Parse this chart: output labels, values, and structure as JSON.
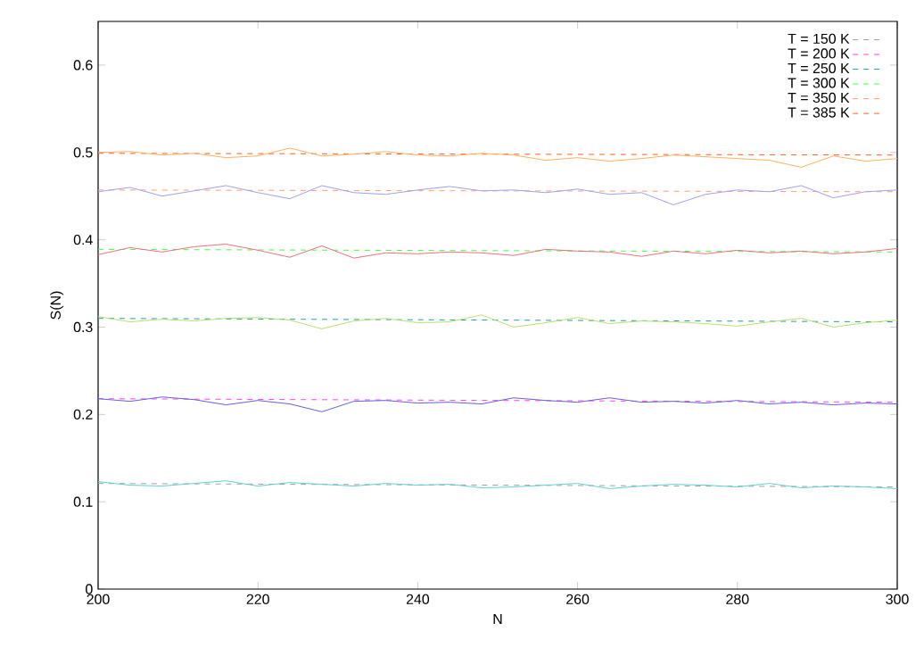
{
  "chart_data": {
    "type": "line",
    "xlabel": "N",
    "ylabel": "S(N)",
    "xlim": [
      200,
      300
    ],
    "ylim": [
      0,
      0.65
    ],
    "xticks": [
      200,
      220,
      240,
      260,
      280,
      300
    ],
    "yticks": [
      0,
      0.1,
      0.2,
      0.3,
      0.4,
      0.5,
      0.6
    ],
    "grid": false,
    "legend": "top right",
    "marker": "none",
    "series": [
      {
        "name": "T = 150 K",
        "color": "#a0a0a0",
        "line_style": "dashed",
        "x": [
          200,
          300
        ],
        "values": [
          0.121,
          0.117
        ]
      },
      {
        "name": "T = 200 K",
        "color": "#ff40ff",
        "line_style": "dashed",
        "x": [
          200,
          300
        ],
        "values": [
          0.218,
          0.214
        ]
      },
      {
        "name": "T = 250 K",
        "color": "#20a0a0",
        "line_style": "dashed",
        "x": [
          200,
          300
        ],
        "values": [
          0.31,
          0.306
        ]
      },
      {
        "name": "T = 300 K",
        "color": "#40ff40",
        "line_style": "dashed",
        "x": [
          200,
          300
        ],
        "values": [
          0.389,
          0.386
        ]
      },
      {
        "name": "T = 350 K",
        "color": "#ffa070",
        "line_style": "dashed",
        "x": [
          200,
          300
        ],
        "values": [
          0.457,
          0.455
        ]
      },
      {
        "name": "T = 385 K",
        "color": "#ff6020",
        "line_style": "dashed",
        "x": [
          200,
          300
        ],
        "values": [
          0.499,
          0.497
        ]
      },
      {
        "color": "#60d0d0",
        "line_style": "solid",
        "x": [
          200,
          204,
          208,
          212,
          216,
          220,
          224,
          228,
          232,
          236,
          240,
          244,
          248,
          252,
          256,
          260,
          264,
          268,
          272,
          276,
          280,
          284,
          288,
          292,
          296,
          300
        ],
        "values": [
          0.123,
          0.119,
          0.118,
          0.121,
          0.124,
          0.118,
          0.122,
          0.12,
          0.118,
          0.121,
          0.119,
          0.12,
          0.116,
          0.117,
          0.119,
          0.121,
          0.115,
          0.118,
          0.12,
          0.119,
          0.117,
          0.121,
          0.116,
          0.118,
          0.117,
          0.115
        ]
      },
      {
        "color": "#6060e0",
        "line_style": "solid",
        "x": [
          200,
          204,
          208,
          212,
          216,
          220,
          224,
          228,
          232,
          236,
          240,
          244,
          248,
          252,
          256,
          260,
          264,
          268,
          272,
          276,
          280,
          284,
          288,
          292,
          296,
          300
        ],
        "values": [
          0.218,
          0.215,
          0.22,
          0.217,
          0.211,
          0.216,
          0.212,
          0.203,
          0.215,
          0.216,
          0.213,
          0.214,
          0.212,
          0.219,
          0.216,
          0.214,
          0.219,
          0.214,
          0.215,
          0.213,
          0.216,
          0.212,
          0.214,
          0.211,
          0.213,
          0.212
        ]
      },
      {
        "color": "#b8e070",
        "line_style": "solid",
        "x": [
          200,
          204,
          208,
          212,
          216,
          220,
          224,
          228,
          232,
          236,
          240,
          244,
          248,
          252,
          256,
          260,
          264,
          268,
          272,
          276,
          280,
          284,
          288,
          292,
          296,
          300
        ],
        "values": [
          0.312,
          0.306,
          0.309,
          0.307,
          0.31,
          0.311,
          0.308,
          0.298,
          0.307,
          0.31,
          0.305,
          0.306,
          0.314,
          0.3,
          0.305,
          0.311,
          0.304,
          0.307,
          0.306,
          0.304,
          0.301,
          0.306,
          0.31,
          0.3,
          0.305,
          0.308
        ]
      },
      {
        "color": "#e87080",
        "line_style": "solid",
        "x": [
          200,
          204,
          208,
          212,
          216,
          220,
          224,
          228,
          232,
          236,
          240,
          244,
          248,
          252,
          256,
          260,
          264,
          268,
          272,
          276,
          280,
          284,
          288,
          292,
          296,
          300
        ],
        "values": [
          0.383,
          0.391,
          0.386,
          0.392,
          0.395,
          0.388,
          0.38,
          0.393,
          0.379,
          0.385,
          0.384,
          0.386,
          0.385,
          0.382,
          0.389,
          0.387,
          0.386,
          0.381,
          0.387,
          0.384,
          0.388,
          0.385,
          0.387,
          0.384,
          0.386,
          0.39
        ]
      },
      {
        "color": "#a0a0f0",
        "line_style": "solid",
        "x": [
          200,
          204,
          208,
          212,
          216,
          220,
          224,
          228,
          232,
          236,
          240,
          244,
          248,
          252,
          256,
          260,
          264,
          268,
          272,
          276,
          280,
          284,
          288,
          292,
          296,
          300
        ],
        "values": [
          0.455,
          0.46,
          0.45,
          0.456,
          0.462,
          0.454,
          0.447,
          0.462,
          0.454,
          0.452,
          0.457,
          0.461,
          0.456,
          0.457,
          0.454,
          0.458,
          0.452,
          0.454,
          0.44,
          0.452,
          0.457,
          0.455,
          0.462,
          0.448,
          0.455,
          0.457
        ]
      },
      {
        "color": "#ffb060",
        "line_style": "solid",
        "x": [
          200,
          204,
          208,
          212,
          216,
          220,
          224,
          228,
          232,
          236,
          240,
          244,
          248,
          252,
          256,
          260,
          264,
          268,
          272,
          276,
          280,
          284,
          288,
          292,
          296,
          300
        ],
        "values": [
          0.5,
          0.501,
          0.497,
          0.499,
          0.494,
          0.496,
          0.505,
          0.496,
          0.498,
          0.501,
          0.497,
          0.496,
          0.499,
          0.497,
          0.491,
          0.494,
          0.49,
          0.493,
          0.497,
          0.495,
          0.493,
          0.491,
          0.483,
          0.496,
          0.49,
          0.493
        ]
      }
    ]
  }
}
